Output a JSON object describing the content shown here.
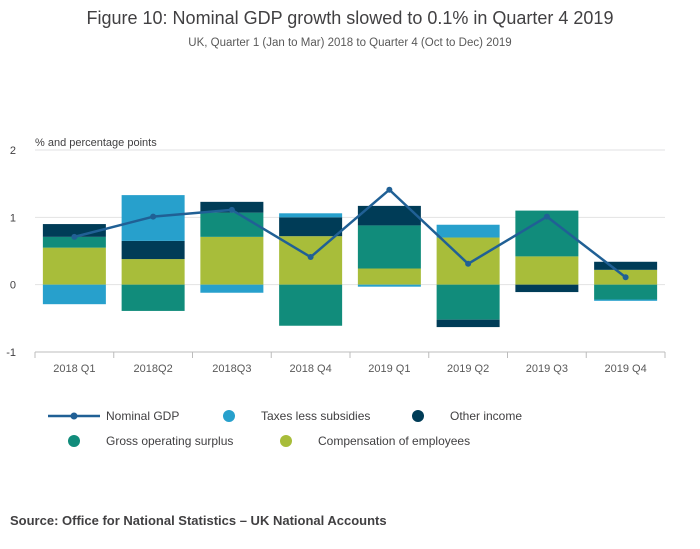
{
  "title": "Figure 10: Nominal GDP growth slowed to 0.1% in Quarter 4 2019",
  "subtitle": "UK, Quarter 1 (Jan to Mar) 2018 to Quarter 4 (Oct to Dec) 2019",
  "source": "Source: Office for National Statistics – UK National Accounts",
  "colors": {
    "nominal_gdp": "#206095",
    "taxes_less_subsidies": "#27a0cc",
    "other_income": "#003c57",
    "gross_operating_surplus": "#118c7b",
    "compensation_of_employees": "#a8bd3a"
  },
  "chart_data": {
    "type": "bar",
    "stacked": true,
    "units_label": "% and percentage points",
    "categories": [
      "2018 Q1",
      "2018Q2",
      "2018Q3",
      "2018 Q4",
      "2019 Q1",
      "2019 Q2",
      "2019 Q3",
      "2019 Q4"
    ],
    "ylim": [
      -1,
      2
    ],
    "yticks": [
      "2",
      "1",
      "0",
      "-1"
    ],
    "grid": true,
    "legend_position": "bottom",
    "series": [
      {
        "name": "Compensation of employees",
        "key": "compensation_of_employees",
        "values": [
          0.55,
          0.38,
          0.71,
          0.72,
          0.24,
          0.7,
          0.42,
          0.22
        ]
      },
      {
        "name": "Gross operating surplus",
        "key": "gross_operating_surplus",
        "values": [
          0.16,
          -0.39,
          0.36,
          -0.61,
          0.64,
          -0.52,
          0.68,
          -0.22
        ]
      },
      {
        "name": "Other income",
        "key": "other_income",
        "values": [
          0.19,
          0.27,
          0.16,
          0.28,
          0.29,
          -0.11,
          -0.11,
          0.12
        ]
      },
      {
        "name": "Taxes less subsidies",
        "key": "taxes_less_subsidies",
        "values": [
          -0.29,
          0.68,
          -0.12,
          0.06,
          -0.03,
          0.19,
          0.0,
          -0.02
        ]
      }
    ],
    "line": {
      "name": "Nominal GDP",
      "key": "nominal_gdp",
      "values": [
        0.71,
        1.01,
        1.11,
        0.41,
        1.41,
        0.31,
        1.01,
        0.11
      ]
    }
  }
}
